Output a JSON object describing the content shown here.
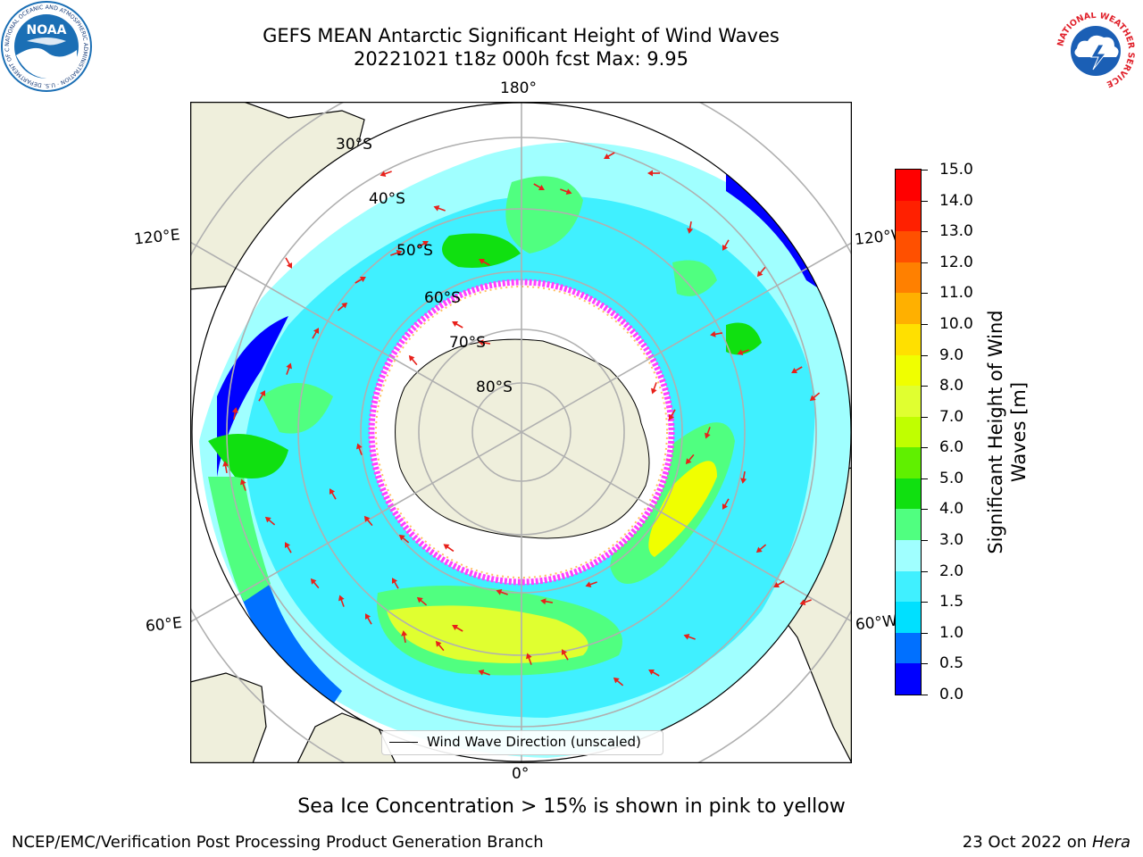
{
  "header": {
    "title_line1": "GEFS MEAN Antarctic Significant Height of Wind Waves",
    "title_line2": "20221021 t18z 000h fcst   Max: 9.95"
  },
  "logos": {
    "noaa": {
      "text": "NOAA",
      "ring_text": "NATIONAL OCEANIC AND ATMOSPHERIC ADMINISTRATION · U.S. DEPARTMENT OF COMMERCE",
      "color": "#1b6fb5"
    },
    "nws": {
      "ring_text": "NATIONAL WEATHER SERVICE",
      "color": "#1b5fb5",
      "ring_color": "#e0202a"
    }
  },
  "map": {
    "projection": "south-polar-stereographic",
    "longitude_labels": [
      "180°",
      "0°",
      "120°E",
      "60°E",
      "120°W",
      "60°W"
    ],
    "latitude_labels": [
      "30°S",
      "40°S",
      "50°S",
      "60°S",
      "70°S",
      "80°S"
    ],
    "legend": {
      "line_label": "Wind Wave Direction (unscaled)"
    },
    "colors": {
      "land": "#efefdc",
      "ocean_nodata": "#ffffff",
      "grid": "#b0b0b0",
      "arrow": "#e8201a",
      "sea_ice": "#ff40ff"
    }
  },
  "colorbar": {
    "title": "Significant Height of Wind Waves [m]",
    "ticks": [
      "0.0",
      "0.5",
      "1.0",
      "1.5",
      "2.0",
      "3.0",
      "4.0",
      "5.0",
      "6.0",
      "7.0",
      "8.0",
      "9.0",
      "10.0",
      "11.0",
      "12.0",
      "13.0",
      "14.0",
      "15.0"
    ],
    "colors": [
      "#0000ff",
      "#0070ff",
      "#00e0ff",
      "#40f0ff",
      "#a0ffff",
      "#50ff80",
      "#10e010",
      "#60f000",
      "#c0ff00",
      "#e0ff30",
      "#f0ff00",
      "#ffe000",
      "#ffb000",
      "#ff8000",
      "#ff5000",
      "#ff2000",
      "#ff0000"
    ]
  },
  "notes": {
    "sea_ice": "Sea Ice Concentration > 15% is shown in pink to yellow"
  },
  "footer": {
    "left": "NCEP/EMC/Verification Post Processing Product Generation Branch",
    "right_date": "23 Oct 2022 on ",
    "right_host": "Hera"
  }
}
